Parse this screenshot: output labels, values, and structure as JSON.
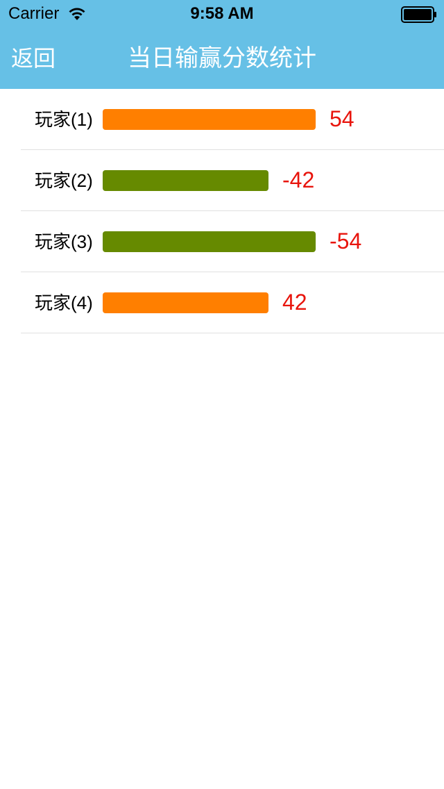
{
  "status_bar": {
    "carrier": "Carrier",
    "time": "9:58 AM",
    "wifi_icon": "wifi-icon",
    "battery_icon": "battery-icon"
  },
  "nav": {
    "back_label": "返回",
    "title": "当日输赢分数统计",
    "background_color": "#66c0e6"
  },
  "colors": {
    "positive_bar": "#ff7f00",
    "negative_bar": "#668a00",
    "score_text": "#e8140c"
  },
  "chart_data": {
    "type": "bar",
    "categories": [
      "玩家(1)",
      "玩家(2)",
      "玩家(3)",
      "玩家(4)"
    ],
    "values": [
      54,
      -42,
      -54,
      42
    ]
  },
  "rows": [
    {
      "label": "玩家(1)",
      "score": "54"
    },
    {
      "label": "玩家(2)",
      "score": "-42"
    },
    {
      "label": "玩家(3)",
      "score": "-54"
    },
    {
      "label": "玩家(4)",
      "score": "42"
    }
  ]
}
